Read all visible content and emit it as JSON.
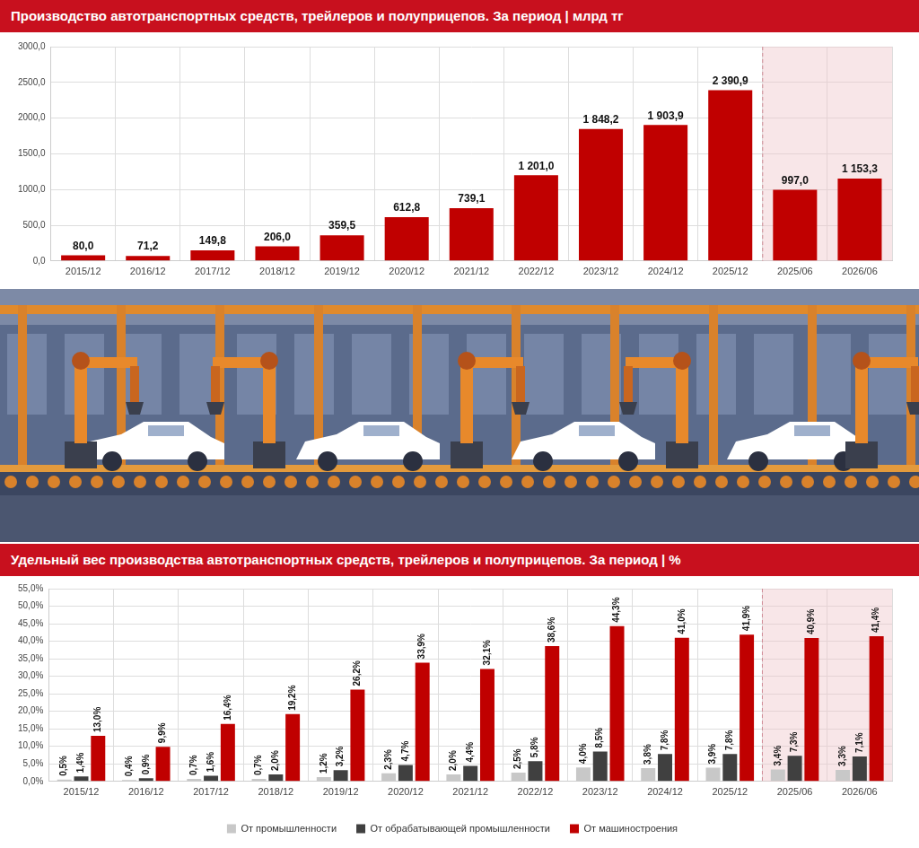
{
  "chart_data": [
    {
      "type": "bar",
      "title": "Производство автотранспортных средств, трейлеров и полуприцепов. За период | млрд тг",
      "categories": [
        "2015/12",
        "2016/12",
        "2017/12",
        "2018/12",
        "2019/12",
        "2020/12",
        "2021/12",
        "2022/12",
        "2023/12",
        "2024/12",
        "2025/12",
        "2025/06",
        "2026/06"
      ],
      "values": [
        80.0,
        71.2,
        149.8,
        206.0,
        359.5,
        612.8,
        739.1,
        1201.0,
        1848.2,
        1903.9,
        2390.9,
        997.0,
        1153.3
      ],
      "value_labels": [
        "80,0",
        "71,2",
        "149,8",
        "206,0",
        "359,5",
        "612,8",
        "739,1",
        "1 201,0",
        "1 848,2",
        "1 903,9",
        "2 390,9",
        "997,0",
        "1 153,3"
      ],
      "color": "#c00000",
      "ylim": [
        0,
        3000
      ],
      "yticks": [
        {
          "value": 0,
          "label": "0,0"
        },
        {
          "value": 500,
          "label": "500,0"
        },
        {
          "value": 1000,
          "label": "1000,0"
        },
        {
          "value": 1500,
          "label": "1500,0"
        },
        {
          "value": 2000,
          "label": "2000,0"
        },
        {
          "value": 2500,
          "label": "2500,0"
        },
        {
          "value": 3000,
          "label": "3000,0"
        }
      ],
      "grid": true,
      "data_labels": true
    },
    {
      "type": "bar",
      "title": "Удельный вес производства автотранспортных средств, трейлеров и полуприцепов. За период | %",
      "categories": [
        "2015/12",
        "2016/12",
        "2017/12",
        "2018/12",
        "2019/12",
        "2020/12",
        "2021/12",
        "2022/12",
        "2023/12",
        "2024/12",
        "2025/12",
        "2025/06",
        "2026/06"
      ],
      "series": [
        {
          "name": "От промышленности",
          "color": "#c8c8c8",
          "values": [
            0.5,
            0.4,
            0.7,
            0.7,
            1.2,
            2.3,
            2.0,
            2.5,
            4.0,
            3.8,
            3.9,
            3.4,
            3.3
          ],
          "value_labels": [
            "0,5%",
            "0,4%",
            "0,7%",
            "0,7%",
            "1,2%",
            "2,3%",
            "2,0%",
            "2,5%",
            "4,0%",
            "3,8%",
            "3,9%",
            "3,4%",
            "3,3%"
          ]
        },
        {
          "name": "От обрабатывающей промышленности",
          "color": "#404040",
          "values": [
            1.4,
            0.9,
            1.6,
            2.0,
            3.2,
            4.7,
            4.4,
            5.8,
            8.5,
            7.8,
            7.8,
            7.3,
            7.1
          ],
          "value_labels": [
            "1,4%",
            "0,9%",
            "1,6%",
            "2,0%",
            "3,2%",
            "4,7%",
            "4,4%",
            "5,8%",
            "8,5%",
            "7,8%",
            "7,8%",
            "7,3%",
            "7,1%"
          ]
        },
        {
          "name": "От машиностроения",
          "color": "#c00000",
          "values": [
            13.0,
            9.9,
            16.4,
            19.2,
            26.2,
            33.9,
            32.1,
            38.6,
            44.3,
            41.0,
            41.9,
            40.9,
            41.4
          ],
          "value_labels": [
            "13,0%",
            "9,9%",
            "16,4%",
            "19,2%",
            "26,2%",
            "33,9%",
            "32,1%",
            "38,6%",
            "44,3%",
            "41,0%",
            "41,9%",
            "40,9%",
            "41,4%"
          ]
        }
      ],
      "ylim": [
        0,
        55
      ],
      "yticks": [
        {
          "value": 0,
          "label": "0,0%"
        },
        {
          "value": 5,
          "label": "5,0%"
        },
        {
          "value": 10,
          "label": "10,0%"
        },
        {
          "value": 15,
          "label": "15,0%"
        },
        {
          "value": 20,
          "label": "20,0%"
        },
        {
          "value": 25,
          "label": "25,0%"
        },
        {
          "value": 30,
          "label": "30,0%"
        },
        {
          "value": 35,
          "label": "35,0%"
        },
        {
          "value": 40,
          "label": "40,0%"
        },
        {
          "value": 45,
          "label": "45,0%"
        },
        {
          "value": 50,
          "label": "50,0%"
        },
        {
          "value": 55,
          "label": "55,0%"
        }
      ],
      "grid": true,
      "legend": "bottom",
      "data_labels": true
    }
  ]
}
